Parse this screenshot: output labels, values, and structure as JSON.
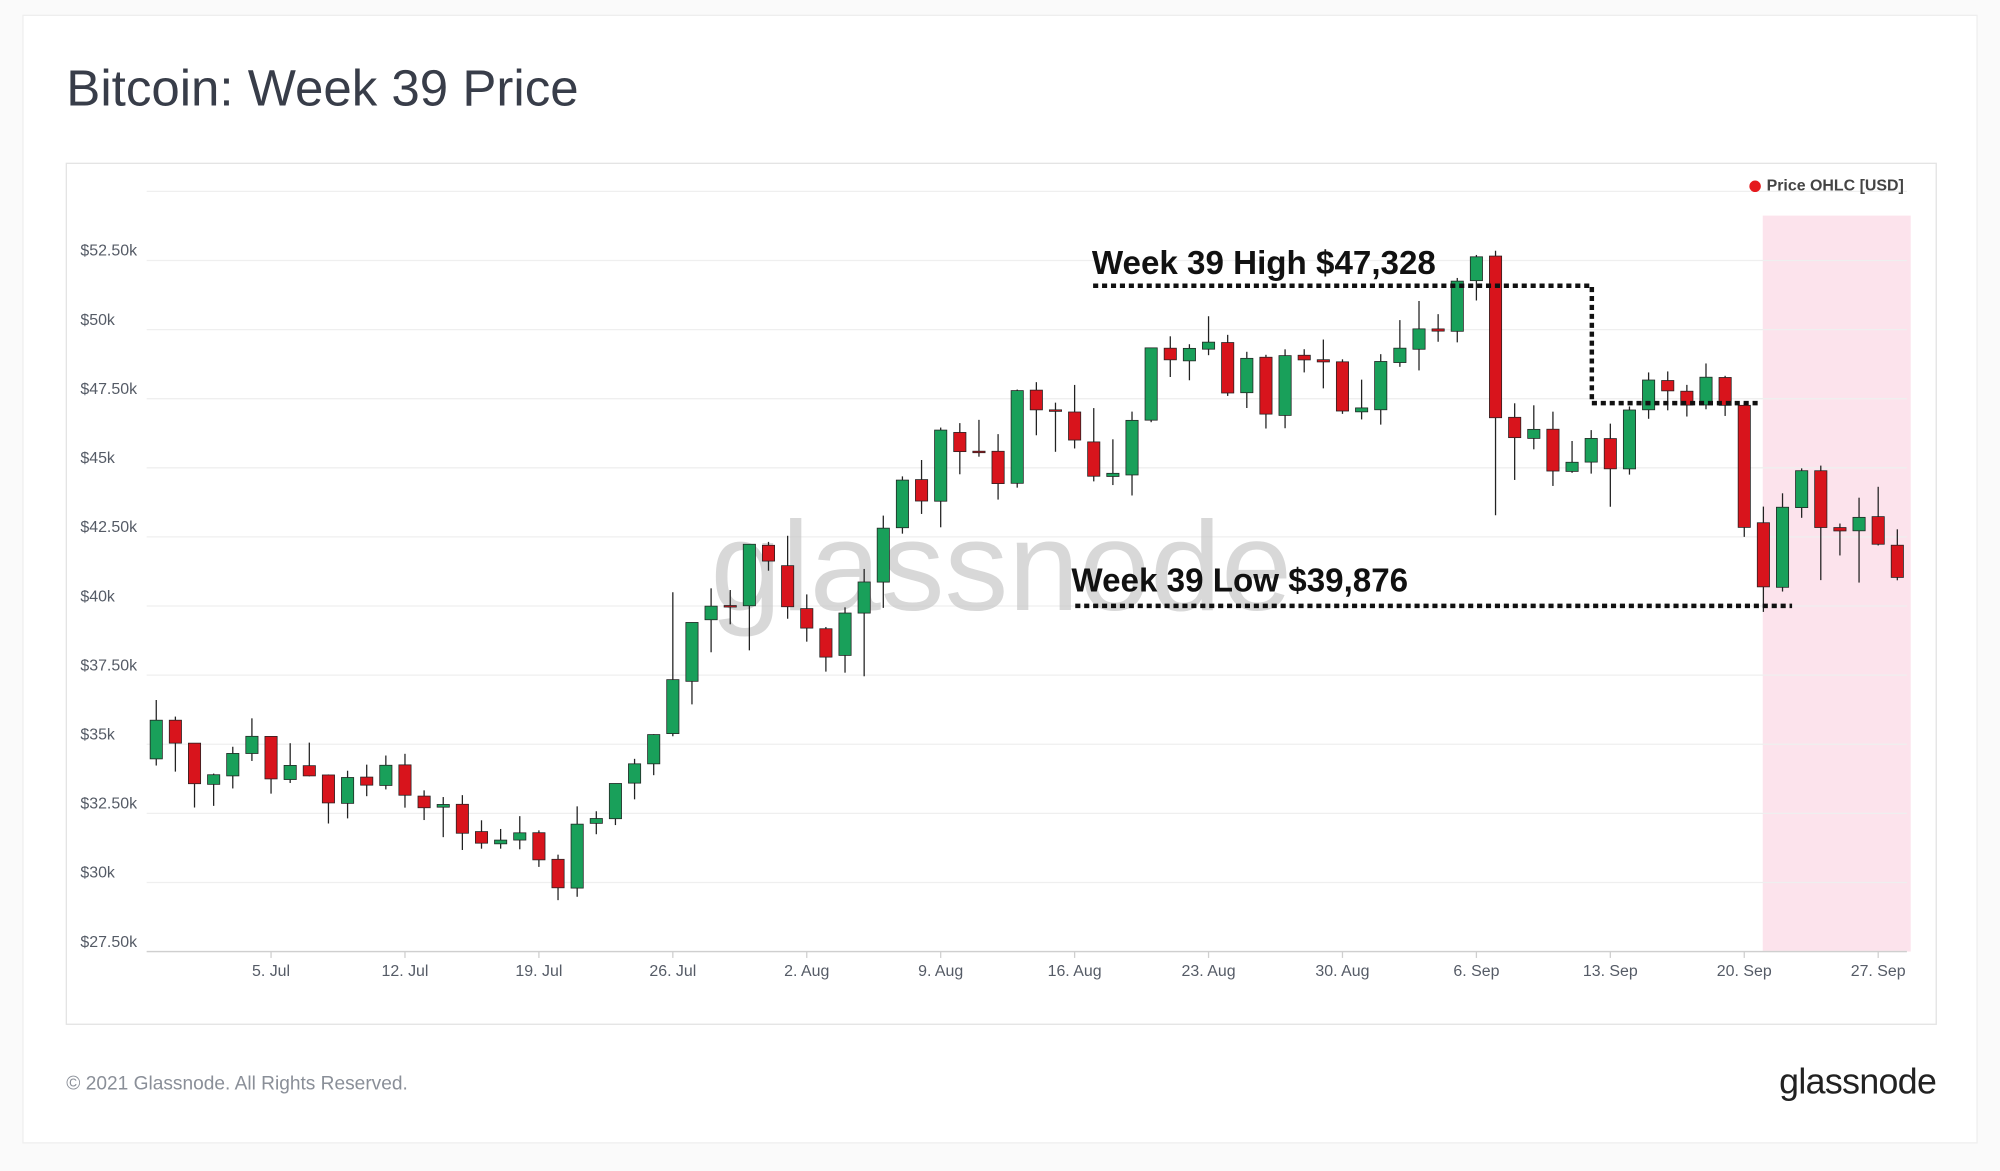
{
  "chart_data": {
    "type": "candlestick",
    "title": "Bitcoin: Week 39 Price",
    "series": [
      {
        "name": "Price OHLC [USD]",
        "color": "#e5191c",
        "open": [
          34470,
          35870,
          35040,
          33549,
          33855,
          34665,
          35284,
          33723,
          34225,
          33889,
          32861,
          33812,
          33509,
          34254,
          33125,
          32723,
          32828,
          31841,
          31397,
          31534,
          31800,
          30838,
          29796,
          32138,
          32306,
          33593,
          34291,
          35385,
          37276,
          39503,
          40018,
          40009,
          42197,
          41460,
          39907,
          39178,
          38213,
          39744,
          40865,
          42832,
          44574,
          43791,
          46280,
          45601,
          45598,
          44439,
          47810,
          47097,
          47019,
          45937,
          44686,
          44741,
          46723,
          49327,
          48869,
          49291,
          49532,
          47716,
          49000,
          46895,
          49072,
          48911,
          48834,
          47024,
          47099,
          48807,
          49288,
          50025,
          49938,
          51769,
          52660,
          46827,
          46063,
          46396,
          44869,
          45206,
          46058,
          44961,
          47098,
          48158,
          47771,
          47273,
          48268,
          47261,
          43013,
          40677,
          43560,
          44894,
          42839,
          42721,
          43234,
          42200
        ],
        "high": [
          36600,
          36000,
          35043,
          33939,
          34909,
          35937,
          35284,
          35038,
          35059,
          33907,
          34042,
          34262,
          34592,
          34654,
          33332,
          33090,
          33159,
          32249,
          31935,
          32399,
          31885,
          31006,
          32753,
          32576,
          33581,
          34472,
          35364,
          40499,
          39406,
          40640,
          40579,
          42235,
          42320,
          42541,
          40420,
          39242,
          39952,
          41341,
          43271,
          44690,
          45282,
          46456,
          46617,
          46735,
          46218,
          47831,
          48098,
          47357,
          47998,
          47160,
          46031,
          47033,
          49342,
          49757,
          49470,
          50483,
          49810,
          49197,
          49088,
          49286,
          49290,
          49640,
          48925,
          48189,
          49111,
          50343,
          51034,
          50558,
          51868,
          52700,
          52853,
          47334,
          47261,
          47031,
          45970,
          46364,
          46598,
          47219,
          48450,
          48486,
          48000,
          48775,
          48328,
          47353,
          43597,
          44078,
          44980,
          45080,
          42984,
          43919,
          44313,
          42775
        ],
        "low": [
          34230,
          34010,
          32711,
          32771,
          33401,
          34396,
          33213,
          33599,
          33840,
          32133,
          32318,
          33121,
          33366,
          32706,
          32258,
          31639,
          31175,
          31221,
          31223,
          31200,
          30563,
          29360,
          29482,
          31745,
          32076,
          33007,
          33881,
          35287,
          36442,
          38327,
          39339,
          38397,
          41277,
          39540,
          38711,
          37627,
          37589,
          37459,
          39933,
          42618,
          43331,
          42848,
          44766,
          45402,
          43850,
          44282,
          46177,
          45579,
          45700,
          44509,
          44376,
          43999,
          46650,
          48285,
          48167,
          49074,
          47600,
          47163,
          46421,
          46432,
          48451,
          47874,
          46951,
          46750,
          46562,
          48652,
          48523,
          49560,
          49538,
          51053,
          43285,
          44561,
          45669,
          44344,
          44818,
          44790,
          43591,
          44753,
          46773,
          47079,
          46855,
          47117,
          46876,
          42500,
          39787,
          40524,
          43191,
          40937,
          41829,
          40848,
          42190,
          40931
        ],
        "close": [
          35870,
          35040,
          33572,
          33897,
          34668,
          35287,
          33746,
          34235,
          33855,
          32877,
          33798,
          33520,
          34240,
          33155,
          32702,
          32822,
          31780,
          31421,
          31533,
          31796,
          30817,
          29807,
          32110,
          32314,
          33581,
          34292,
          35350,
          37337,
          39406,
          39996,
          40008,
          42235,
          41626,
          39974,
          39201,
          38152,
          39747,
          40870,
          42817,
          44556,
          43798,
          46365,
          45585,
          45593,
          44428,
          47793,
          47096,
          47047,
          46004,
          44695,
          44801,
          46717,
          49339,
          48906,
          49321,
          49546,
          47706,
          48960,
          46942,
          49058,
          48903,
          48830,
          47054,
          47167,
          48847,
          49328,
          50026,
          49944,
          51753,
          52633,
          46811,
          46091,
          46391,
          44883,
          45201,
          46063,
          44963,
          47092,
          48176,
          47783,
          47268,
          48278,
          47260,
          42844,
          40693,
          43574,
          44895,
          42840,
          42716,
          43208,
          42235,
          41034
        ]
      }
    ],
    "up_color": "#19a05a",
    "down_color": "#d8141c",
    "categories": [
      "29. Jun",
      "30. Jun",
      "1. Jul",
      "2. Jul",
      "3. Jul",
      "4. Jul",
      "5. Jul",
      "6. Jul",
      "7. Jul",
      "8. Jul",
      "9. Jul",
      "10. Jul",
      "11. Jul",
      "12. Jul",
      "13. Jul",
      "14. Jul",
      "15. Jul",
      "16. Jul",
      "17. Jul",
      "18. Jul",
      "19. Jul",
      "20. Jul",
      "21. Jul",
      "22. Jul",
      "23. Jul",
      "24. Jul",
      "25. Jul",
      "26. Jul",
      "27. Jul",
      "28. Jul",
      "29. Jul",
      "30. Jul",
      "31. Jul",
      "1. Aug",
      "2. Aug",
      "3. Aug",
      "4. Aug",
      "5. Aug",
      "6. Aug",
      "7. Aug",
      "8. Aug",
      "9. Aug",
      "10. Aug",
      "11. Aug",
      "12. Aug",
      "13. Aug",
      "14. Aug",
      "15. Aug",
      "16. Aug",
      "17. Aug",
      "18. Aug",
      "19. Aug",
      "20. Aug",
      "21. Aug",
      "22. Aug",
      "23. Aug",
      "24. Aug",
      "25. Aug",
      "26. Aug",
      "27. Aug",
      "28. Aug",
      "29. Aug",
      "30. Aug",
      "31. Aug",
      "1. Sep",
      "2. Sep",
      "3. Sep",
      "4. Sep",
      "5. Sep",
      "6. Sep",
      "7. Sep",
      "8. Sep",
      "9. Sep",
      "10. Sep",
      "11. Sep",
      "12. Sep",
      "13. Sep",
      "14. Sep",
      "15. Sep",
      "16. Sep",
      "17. Sep",
      "18. Sep",
      "19. Sep",
      "20. Sep",
      "21. Sep",
      "22. Sep",
      "23. Sep",
      "24. Sep",
      "25. Sep",
      "26. Sep",
      "27. Sep",
      "28. Sep"
    ],
    "xticks": [
      "5. Jul",
      "12. Jul",
      "19. Jul",
      "26. Jul",
      "2. Aug",
      "9. Aug",
      "16. Aug",
      "23. Aug",
      "30. Aug",
      "6. Sep",
      "13. Sep",
      "20. Sep",
      "27. Sep"
    ],
    "ylim": [
      27500,
      55000
    ],
    "yticks": [
      {
        "value": 27500,
        "label": "$27.50k"
      },
      {
        "value": 30000,
        "label": "$30k"
      },
      {
        "value": 32500,
        "label": "$32.50k"
      },
      {
        "value": 35000,
        "label": "$35k"
      },
      {
        "value": 37500,
        "label": "$37.50k"
      },
      {
        "value": 40000,
        "label": "$40k"
      },
      {
        "value": 42500,
        "label": "$42.50k"
      },
      {
        "value": 45000,
        "label": "$45k"
      },
      {
        "value": 47500,
        "label": "$47.50k"
      },
      {
        "value": 50000,
        "label": "$50k"
      },
      {
        "value": 52500,
        "label": "$52.50k"
      }
    ],
    "grid": true,
    "legend": "top-right",
    "annotations": [
      "Week 39 High $47,328",
      "Week 39 Low $39,876"
    ],
    "footer": "© 2021 Glassnode. All Rights Reserved.",
    "brand": "glassnode"
  }
}
